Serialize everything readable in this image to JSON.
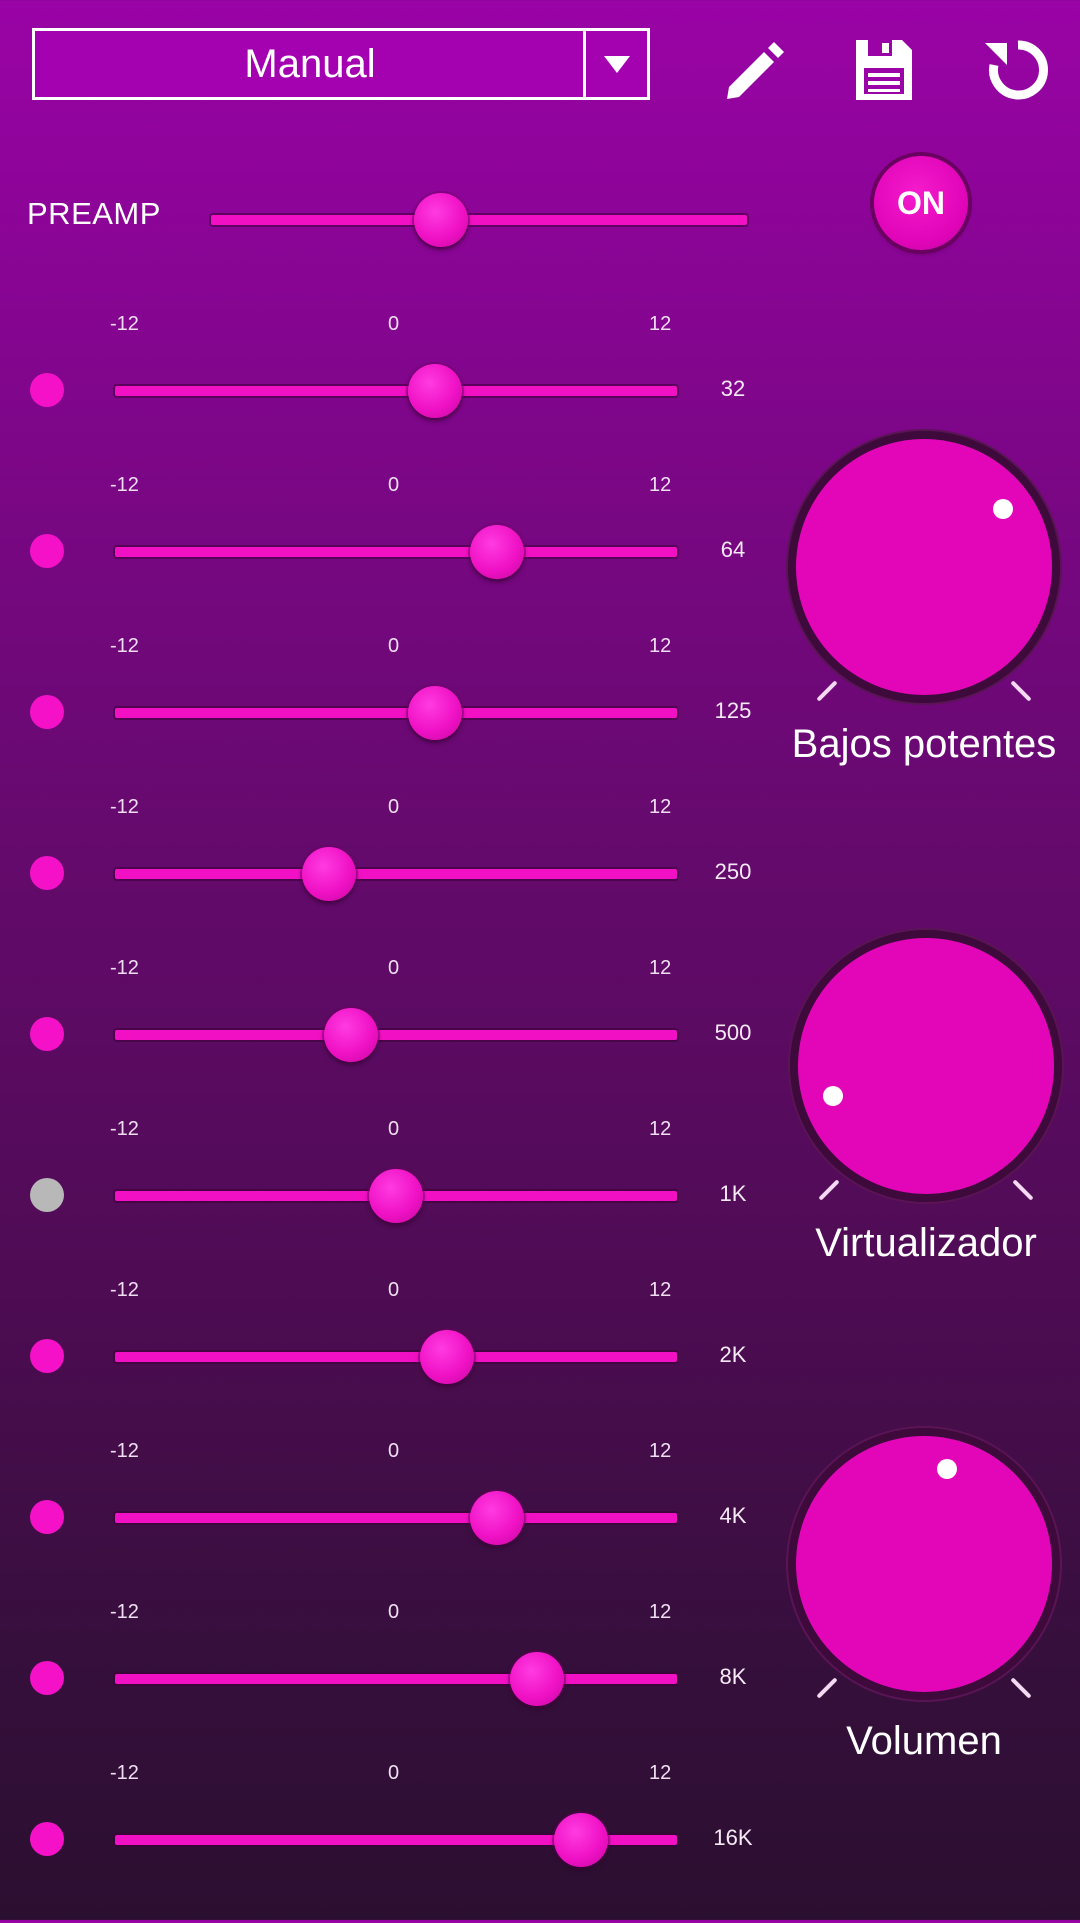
{
  "header": {
    "preset": "Manual",
    "icons": [
      "chevron-down-icon",
      "pencil-icon",
      "save-icon",
      "reset-icon"
    ]
  },
  "preamp": {
    "label": "PREAMP",
    "level": 0.43
  },
  "power": {
    "label": "ON"
  },
  "scale": {
    "min": "-12",
    "mid": "0",
    "max": "12"
  },
  "bands": [
    {
      "freq": "32",
      "level": 0.57,
      "enabled": true
    },
    {
      "freq": "64",
      "level": 0.68,
      "enabled": true
    },
    {
      "freq": "125",
      "level": 0.57,
      "enabled": true
    },
    {
      "freq": "250",
      "level": 0.38,
      "enabled": true
    },
    {
      "freq": "500",
      "level": 0.42,
      "enabled": true
    },
    {
      "freq": "1K",
      "level": 0.5,
      "enabled": false
    },
    {
      "freq": "2K",
      "level": 0.59,
      "enabled": true
    },
    {
      "freq": "4K",
      "level": 0.68,
      "enabled": true
    },
    {
      "freq": "8K",
      "level": 0.75,
      "enabled": true
    },
    {
      "freq": "16K",
      "level": 0.83,
      "enabled": true
    }
  ],
  "knobs": [
    {
      "label": "Bajos potentes",
      "value": 0.7
    },
    {
      "label": "Virtualizador",
      "value": 0.1
    },
    {
      "label": "Volumen",
      "value": 0.55
    }
  ],
  "colors": {
    "accent": "#f210c4",
    "knob": "#e306b9",
    "disabled": "#b8b8b8"
  }
}
